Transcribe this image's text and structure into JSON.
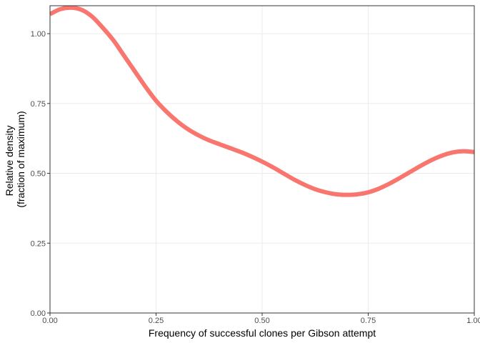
{
  "chart_data": {
    "type": "line",
    "title": "",
    "xlabel": "Frequency of successful clones per Gibson attempt",
    "ylabel_lines": [
      "Relative density",
      "(fraction of maximum)"
    ],
    "xlim": [
      0,
      1
    ],
    "ylim": [
      0,
      1.1
    ],
    "x_ticks": [
      0,
      0.25,
      0.5,
      0.75,
      1.0
    ],
    "x_tick_labels": [
      "0.00",
      "0.25",
      "0.50",
      "0.75",
      "1.00"
    ],
    "y_ticks": [
      0,
      0.25,
      0.5,
      0.75,
      1.0
    ],
    "y_tick_labels": [
      "0.00",
      "0.25",
      "0.50",
      "0.75",
      "1.00"
    ],
    "grid": true,
    "series": [
      {
        "color": "#f8766d",
        "x": [
          0.0,
          0.025,
          0.05,
          0.075,
          0.1,
          0.125,
          0.15,
          0.175,
          0.2,
          0.225,
          0.25,
          0.275,
          0.3,
          0.325,
          0.35,
          0.375,
          0.4,
          0.425,
          0.45,
          0.475,
          0.5,
          0.525,
          0.55,
          0.575,
          0.6,
          0.625,
          0.65,
          0.675,
          0.7,
          0.725,
          0.75,
          0.775,
          0.8,
          0.825,
          0.85,
          0.875,
          0.9,
          0.925,
          0.95,
          0.975,
          1.0
        ],
        "values": [
          1.07,
          1.088,
          1.093,
          1.085,
          1.06,
          1.02,
          0.975,
          0.92,
          0.865,
          0.81,
          0.76,
          0.72,
          0.686,
          0.658,
          0.636,
          0.618,
          0.604,
          0.59,
          0.576,
          0.56,
          0.542,
          0.522,
          0.5,
          0.478,
          0.459,
          0.443,
          0.432,
          0.425,
          0.423,
          0.425,
          0.432,
          0.445,
          0.463,
          0.484,
          0.506,
          0.528,
          0.548,
          0.564,
          0.575,
          0.579,
          0.576
        ]
      }
    ]
  }
}
